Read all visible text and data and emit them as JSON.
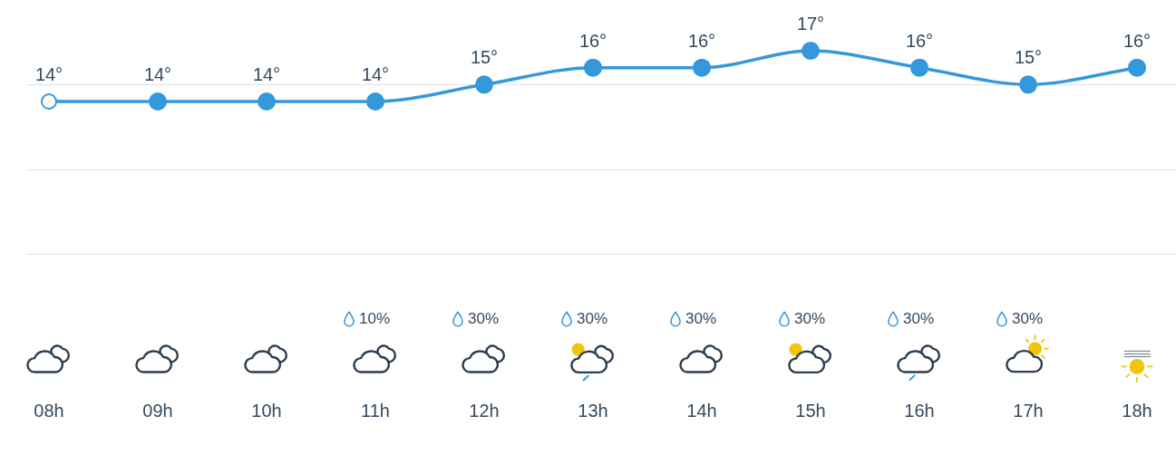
{
  "chart_data": {
    "type": "line",
    "categories": [
      "08h",
      "09h",
      "10h",
      "11h",
      "12h",
      "13h",
      "14h",
      "15h",
      "16h",
      "17h",
      "18h"
    ],
    "series": [
      {
        "color": "#3498db",
        "values": [
          14,
          14,
          14,
          14,
          15,
          16,
          16,
          17,
          16,
          15,
          16
        ],
        "value_labels": [
          "14°",
          "14°",
          "14°",
          "14°",
          "15°",
          "16°",
          "16°",
          "17°",
          "16°",
          "15°",
          "16°"
        ]
      }
    ],
    "ref_lines": [
      {
        "axis": "y",
        "value": 15,
        "color": "#e2e2e2"
      },
      {
        "axis": "y",
        "value": 10,
        "color": "#e2e2e2"
      },
      {
        "axis": "y",
        "value": 5,
        "color": "#e2e2e2"
      }
    ],
    "tick_labels": "x",
    "marker": "circle",
    "line_style": "solid",
    "legend": false,
    "annotations": [
      "10%",
      "30%",
      "30%",
      "30%",
      "30%",
      "30%",
      "30%"
    ]
  }
}
